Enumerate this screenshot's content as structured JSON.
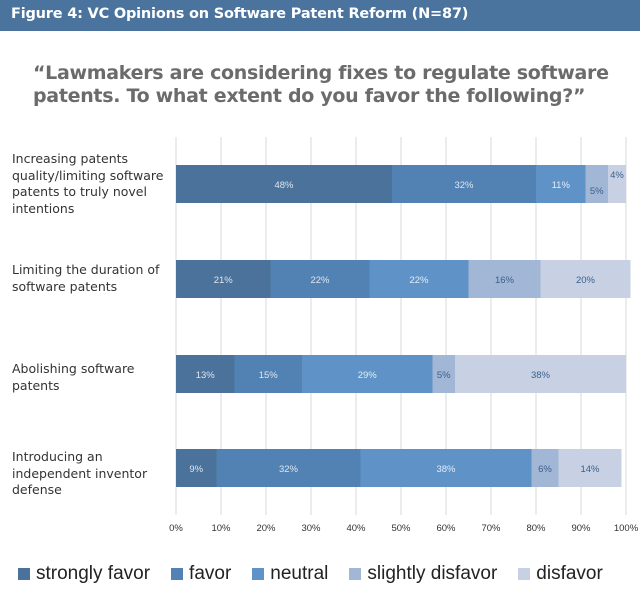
{
  "header": {
    "title": "Figure 4: VC Opinions on Software Patent Reform (N=87)"
  },
  "question": "“Lawmakers are considering fixes to regulate software patents. To what extent do you favor the following?”",
  "chart_data": {
    "type": "bar",
    "orientation": "horizontal",
    "stacked": true,
    "title": "Figure 4: VC Opinions on Software Patent Reform (N=87)",
    "subtitle": "“Lawmakers are considering fixes to regulate software patents. To what extent do you favor the following?”",
    "xlabel": "",
    "ylabel": "",
    "xlim": [
      0,
      100
    ],
    "x_ticks": [
      "0%",
      "10%",
      "20%",
      "30%",
      "40%",
      "50%",
      "60%",
      "70%",
      "80%",
      "90%",
      "100%"
    ],
    "grid": true,
    "legend_position": "bottom",
    "categories": [
      "Increasing patents quality/limiting software patents to truly novel intentions",
      "Limiting the duration of software patents",
      "Abolishing software patents",
      "Introducing an independent inventor defense"
    ],
    "series": [
      {
        "name": "strongly favor",
        "color": "#4a729a",
        "label_color": "#dfe6ef",
        "values": [
          48,
          21,
          13,
          9
        ]
      },
      {
        "name": "favor",
        "color": "#5282b3",
        "label_color": "#dfe6ef",
        "values": [
          32,
          22,
          15,
          32
        ]
      },
      {
        "name": "neutral",
        "color": "#5f93c7",
        "label_color": "#e4ecf5",
        "values": [
          11,
          22,
          29,
          38
        ]
      },
      {
        "name": "slightly disfavor",
        "color": "#a2b6d6",
        "label_color": "#3a5f8c",
        "values": [
          5,
          16,
          5,
          6
        ]
      },
      {
        "name": "disfavor",
        "color": "#c7d1e3",
        "label_color": "#3a5f8c",
        "values": [
          4,
          20,
          38,
          14
        ]
      }
    ]
  },
  "labels": {
    "categories": [
      "Increasing patents quality/limiting software patents to truly novel intentions",
      "Limiting the duration of software patents",
      "Abolishing software patents",
      "Introducing an independent inventor defense"
    ]
  }
}
